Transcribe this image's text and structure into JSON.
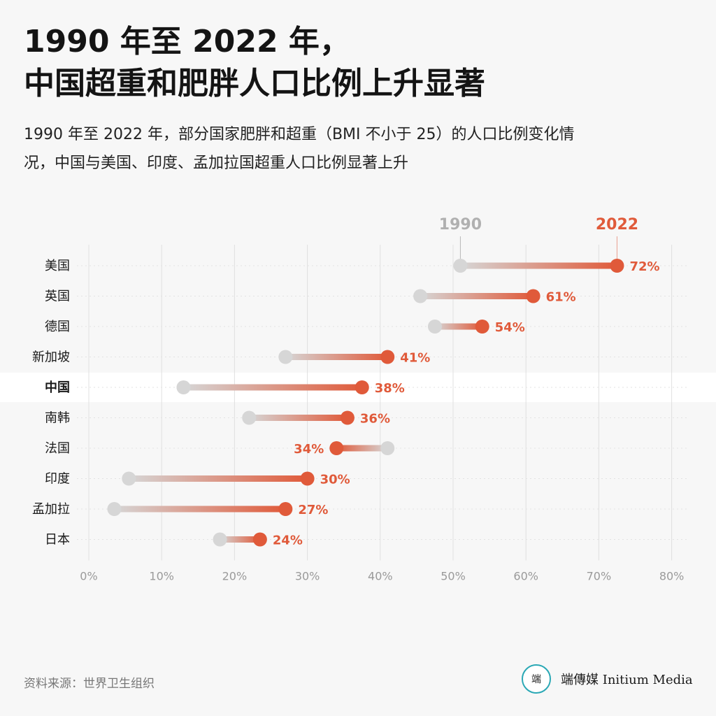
{
  "header": {
    "title_line1": "1990 年至 2022 年，",
    "title_line2": "中国超重和肥胖人口比例上升显著",
    "subtitle_line1": "1990 年至 2022 年，部分国家肥胖和超重（BMI 不小于 25）的人口比例变化情",
    "subtitle_line2": "况，中国与美国、印度、孟加拉国超重人口比例显著上升"
  },
  "chart_data": {
    "type": "dumbbell",
    "series": [
      {
        "name": "1990",
        "color": "#d6d6d6",
        "label_color": "#b0b0b0"
      },
      {
        "name": "2022",
        "color": "#e05a3a",
        "label_color": "#e05a3a"
      }
    ],
    "categories": [
      "美国",
      "英国",
      "德国",
      "新加坡",
      "中国",
      "南韩",
      "法国",
      "印度",
      "孟加拉",
      "日本"
    ],
    "highlight": "中国",
    "values_1990": [
      51,
      45.5,
      47.5,
      27,
      13,
      22,
      41,
      5.5,
      3.5,
      18
    ],
    "values_2022": [
      72.5,
      61,
      54,
      41,
      37.5,
      35.5,
      34,
      30,
      27,
      23.5
    ],
    "value_labels_2022": [
      "72%",
      "61%",
      "54%",
      "41%",
      "38%",
      "36%",
      "34%",
      "30%",
      "27%",
      "24%"
    ],
    "x_ticks": [
      "0%",
      "10%",
      "20%",
      "30%",
      "40%",
      "50%",
      "60%",
      "70%",
      "80%"
    ],
    "xlim": [
      0,
      80
    ],
    "grid": true
  },
  "footer": {
    "source": "资料来源：世界卫生组织",
    "brand_logo": "端",
    "brand_name": "端傳媒 Initium Media"
  }
}
